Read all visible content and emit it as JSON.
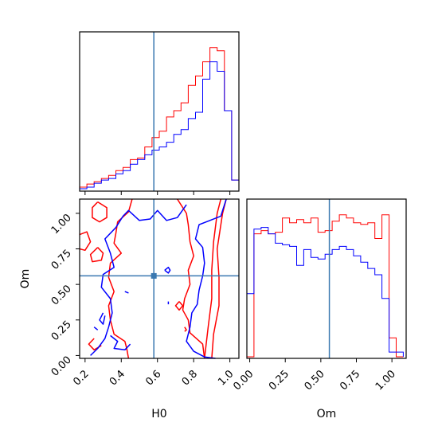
{
  "chart_data": {
    "type": "corner",
    "parameters": [
      "H0",
      "Om"
    ],
    "truth": {
      "H0": 0.58,
      "Om": 0.56
    },
    "colors": {
      "series_a": "#ff0000",
      "series_b": "#0000ff",
      "truth": "#3a78b0"
    },
    "axes": {
      "H0": {
        "label": "H0",
        "range": [
          0.17,
          1.05
        ],
        "ticks": [
          "0.2",
          "0.4",
          "0.6",
          "0.8",
          "1.0"
        ],
        "tick_values": [
          0.2,
          0.4,
          0.6,
          0.8,
          1.0
        ]
      },
      "Om": {
        "label": "Om",
        "range": [
          -0.02,
          1.1
        ],
        "ticks": [
          "0.00",
          "0.25",
          "0.50",
          "0.75",
          "1.00"
        ],
        "tick_values": [
          0.0,
          0.25,
          0.5,
          0.75,
          1.0
        ]
      }
    },
    "hist_H0": {
      "bins": [
        0.17,
        0.21,
        0.25,
        0.29,
        0.33,
        0.37,
        0.41,
        0.45,
        0.49,
        0.53,
        0.57,
        0.61,
        0.65,
        0.69,
        0.73,
        0.77,
        0.81,
        0.85,
        0.89,
        0.93,
        0.97,
        1.01,
        1.05
      ],
      "series": [
        {
          "color": "#ff0000",
          "values": [
            0.015,
            0.035,
            0.05,
            0.07,
            0.09,
            0.12,
            0.14,
            0.19,
            0.2,
            0.27,
            0.33,
            0.37,
            0.46,
            0.5,
            0.55,
            0.66,
            0.72,
            0.81,
            0.9,
            0.88,
            0.5,
            0.06
          ]
        },
        {
          "color": "#0000ff",
          "values": [
            0.005,
            0.015,
            0.04,
            0.06,
            0.07,
            0.1,
            0.12,
            0.16,
            0.19,
            0.22,
            0.25,
            0.27,
            0.3,
            0.35,
            0.38,
            0.45,
            0.49,
            0.7,
            0.81,
            0.75,
            0.5,
            0.06
          ]
        }
      ]
    },
    "hist_Om": {
      "bins": [
        -0.02,
        0.03,
        0.08,
        0.13,
        0.18,
        0.23,
        0.28,
        0.33,
        0.38,
        0.43,
        0.48,
        0.53,
        0.58,
        0.63,
        0.68,
        0.73,
        0.78,
        0.83,
        0.88,
        0.93,
        0.98,
        1.03,
        1.08
      ],
      "series": [
        {
          "color": "#ff0000",
          "values": [
            0.0,
            0.78,
            0.8,
            0.78,
            0.79,
            0.88,
            0.85,
            0.87,
            0.85,
            0.88,
            0.79,
            0.8,
            0.86,
            0.9,
            0.88,
            0.85,
            0.84,
            0.85,
            0.75,
            0.9,
            0.12,
            0.0
          ]
        },
        {
          "color": "#0000ff",
          "values": [
            0.4,
            0.81,
            0.82,
            0.78,
            0.72,
            0.71,
            0.7,
            0.58,
            0.68,
            0.63,
            0.62,
            0.65,
            0.68,
            0.7,
            0.68,
            0.64,
            0.6,
            0.56,
            0.52,
            0.37,
            0.03,
            0.03
          ]
        }
      ]
    },
    "contours": [
      {
        "color": "#ff0000",
        "paths": [
          [
            [
              0.44,
              -0.02
            ],
            [
              0.43,
              0.05
            ],
            [
              0.42,
              0.1
            ],
            [
              0.36,
              0.15
            ],
            [
              0.34,
              0.25
            ],
            [
              0.33,
              0.35
            ],
            [
              0.36,
              0.45
            ],
            [
              0.33,
              0.55
            ],
            [
              0.34,
              0.65
            ],
            [
              0.4,
              0.72
            ],
            [
              0.36,
              0.79
            ],
            [
              0.37,
              0.86
            ],
            [
              0.38,
              0.94
            ],
            [
              0.44,
              1.01
            ],
            [
              0.46,
              1.1
            ]
          ],
          [
            [
              0.71,
              1.1
            ],
            [
              0.76,
              1.0
            ],
            [
              0.77,
              0.92
            ],
            [
              0.78,
              0.8
            ],
            [
              0.8,
              0.7
            ],
            [
              0.77,
              0.6
            ],
            [
              0.78,
              0.5
            ],
            [
              0.75,
              0.4
            ],
            [
              0.74,
              0.32
            ],
            [
              0.77,
              0.25
            ],
            [
              0.78,
              0.16
            ],
            [
              0.85,
              0.08
            ],
            [
              0.86,
              -0.02
            ]
          ],
          [
            [
              0.9,
              -0.02
            ],
            [
              0.91,
              0.15
            ],
            [
              0.94,
              0.35
            ],
            [
              0.94,
              0.55
            ],
            [
              0.93,
              0.75
            ],
            [
              0.96,
              1.0
            ],
            [
              0.98,
              1.1
            ]
          ],
          [
            [
              0.86,
              -0.02
            ],
            [
              0.88,
              0.2
            ],
            [
              0.9,
              0.4
            ],
            [
              0.9,
              0.6
            ],
            [
              0.91,
              0.8
            ],
            [
              0.93,
              1.0
            ],
            [
              0.95,
              1.1
            ]
          ],
          [
            [
              0.27,
              1.08
            ],
            [
              0.24,
              1.04
            ],
            [
              0.24,
              0.97
            ],
            [
              0.28,
              0.94
            ],
            [
              0.32,
              0.97
            ],
            [
              0.32,
              1.04
            ],
            [
              0.27,
              1.08
            ]
          ],
          [
            [
              0.17,
              0.85
            ],
            [
              0.21,
              0.87
            ],
            [
              0.23,
              0.8
            ],
            [
              0.2,
              0.74
            ],
            [
              0.17,
              0.75
            ]
          ],
          [
            [
              0.27,
              0.76
            ],
            [
              0.3,
              0.72
            ],
            [
              0.29,
              0.67
            ],
            [
              0.24,
              0.66
            ],
            [
              0.23,
              0.71
            ],
            [
              0.27,
              0.76
            ]
          ],
          [
            [
              0.25,
              0.12
            ],
            [
              0.22,
              0.08
            ],
            [
              0.25,
              0.04
            ],
            [
              0.29,
              0.07
            ]
          ],
          [
            [
              0.72,
              0.38
            ],
            [
              0.74,
              0.35
            ],
            [
              0.72,
              0.32
            ],
            [
              0.7,
              0.35
            ],
            [
              0.72,
              0.38
            ]
          ],
          [
            [
              0.75,
              0.2
            ],
            [
              0.76,
              0.18
            ],
            [
              0.75,
              0.17
            ]
          ]
        ]
      },
      {
        "color": "#0000ff",
        "paths": [
          [
            [
              0.23,
              0.0
            ],
            [
              0.27,
              0.05
            ],
            [
              0.31,
              0.12
            ],
            [
              0.33,
              0.2
            ],
            [
              0.35,
              0.3
            ],
            [
              0.34,
              0.4
            ],
            [
              0.29,
              0.48
            ],
            [
              0.3,
              0.57
            ],
            [
              0.36,
              0.62
            ],
            [
              0.34,
              0.72
            ],
            [
              0.31,
              0.82
            ],
            [
              0.37,
              0.9
            ],
            [
              0.41,
              0.98
            ],
            [
              0.44,
              1.02
            ],
            [
              0.5,
              0.95
            ],
            [
              0.56,
              0.96
            ],
            [
              0.6,
              1.02
            ],
            [
              0.65,
              0.95
            ],
            [
              0.71,
              0.97
            ],
            [
              0.76,
              1.06
            ]
          ],
          [
            [
              0.98,
              1.1
            ],
            [
              0.95,
              0.98
            ],
            [
              0.89,
              0.95
            ],
            [
              0.83,
              0.92
            ],
            [
              0.81,
              0.82
            ],
            [
              0.85,
              0.76
            ],
            [
              0.86,
              0.65
            ],
            [
              0.85,
              0.56
            ],
            [
              0.83,
              0.46
            ],
            [
              0.82,
              0.36
            ],
            [
              0.79,
              0.3
            ],
            [
              0.78,
              0.2
            ],
            [
              0.76,
              0.1
            ],
            [
              0.8,
              0.03
            ],
            [
              0.86,
              -0.01
            ],
            [
              0.92,
              -0.02
            ]
          ],
          [
            [
              0.3,
              0.3
            ],
            [
              0.28,
              0.25
            ],
            [
              0.3,
              0.22
            ],
            [
              0.31,
              0.28
            ]
          ],
          [
            [
              0.34,
              0.14
            ],
            [
              0.38,
              0.1
            ],
            [
              0.36,
              0.05
            ],
            [
              0.42,
              0.04
            ],
            [
              0.45,
              0.08
            ]
          ],
          [
            [
              0.64,
              0.6
            ],
            [
              0.66,
              0.62
            ],
            [
              0.67,
              0.6
            ],
            [
              0.66,
              0.58
            ],
            [
              0.64,
              0.6
            ]
          ],
          [
            [
              0.66,
              0.38
            ],
            [
              0.66,
              0.36
            ]
          ],
          [
            [
              0.42,
              0.45
            ],
            [
              0.44,
              0.44
            ]
          ],
          [
            [
              0.25,
              0.2
            ],
            [
              0.27,
              0.18
            ]
          ]
        ]
      }
    ]
  }
}
